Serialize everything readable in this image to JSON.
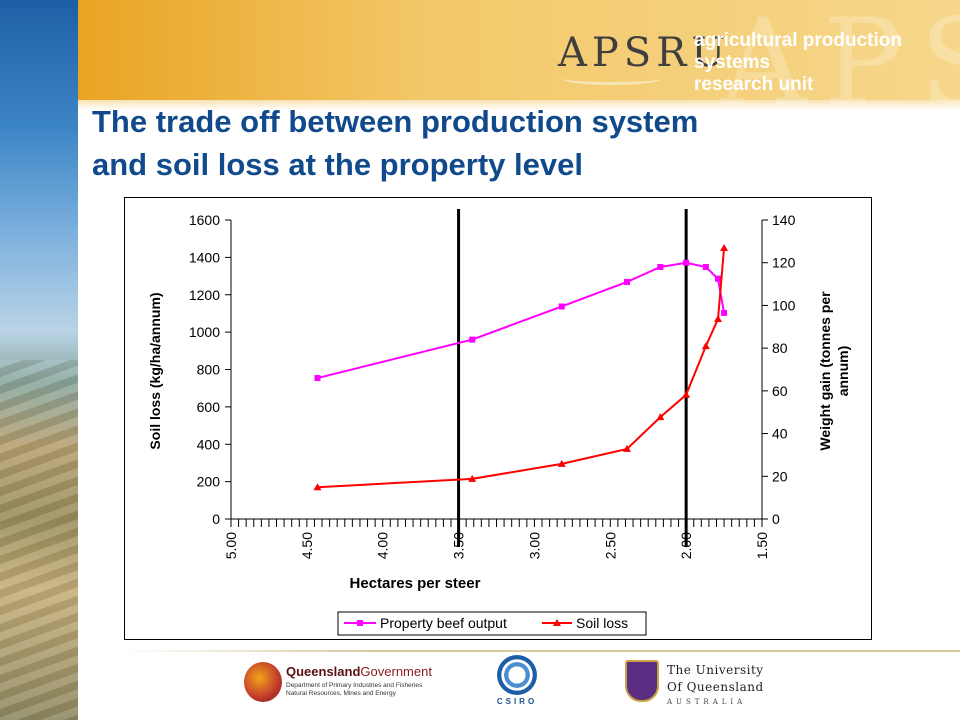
{
  "header": {
    "logo_text": "APSRU",
    "tagline_line1": "agricultural production systems",
    "tagline_line2": "research unit",
    "brand_color": "#e9a423"
  },
  "title": {
    "line1": "The trade off between production system",
    "line2": "and soil loss at the property level",
    "color": "#114a8c"
  },
  "chart_data": {
    "type": "line",
    "xlabel": "Hectares per steer",
    "ylabel_left": "Soil loss (kg/ha/annum)",
    "ylabel_right_line1": "Weight gain (tonnes per",
    "ylabel_right_line2": "annum)",
    "x_reversed": true,
    "xlim": [
      5.0,
      1.5
    ],
    "x_ticks": [
      "5.00",
      "4.50",
      "4.00",
      "3.50",
      "3.00",
      "2.50",
      "2.00",
      "1.50"
    ],
    "ylim_left": [
      0,
      1600
    ],
    "y_ticks_left": [
      "0",
      "200",
      "400",
      "600",
      "800",
      "1000",
      "1200",
      "1400",
      "1600"
    ],
    "ylim_right": [
      0,
      140
    ],
    "y_ticks_right": [
      "0",
      "20",
      "40",
      "60",
      "80",
      "100",
      "120",
      "140"
    ],
    "vertical_lines_x": [
      3.5,
      2.0
    ],
    "legend_position": "bottom",
    "series": [
      {
        "name": "Property beef output",
        "axis": "right",
        "color": "#ff00ff",
        "marker": "square",
        "x": [
          4.43,
          3.41,
          2.82,
          2.39,
          2.17,
          2.0,
          1.87,
          1.79,
          1.75
        ],
        "y": [
          66,
          84,
          99.5,
          111,
          118,
          120,
          118,
          112.5,
          96.5
        ]
      },
      {
        "name": "Soil loss",
        "axis": "left",
        "color": "#ff0000",
        "marker": "triangle",
        "x": [
          4.43,
          3.41,
          2.82,
          2.39,
          2.17,
          2.0,
          1.87,
          1.79,
          1.75
        ],
        "y": [
          170,
          215,
          295,
          375,
          545,
          665,
          925,
          1070,
          1450
        ]
      }
    ]
  },
  "footer": {
    "qld_name_regular": "Queensland",
    "qld_name_bold": "Government",
    "qld_dept_line1": "Department of Primary Industries and Fisheries",
    "qld_dept_line2": "Natural Resources, Mines and Energy",
    "csiro": "CSIRO",
    "uq_line1": "The University",
    "uq_line2": "Of Queensland",
    "uq_country": "AUSTRALIA"
  }
}
